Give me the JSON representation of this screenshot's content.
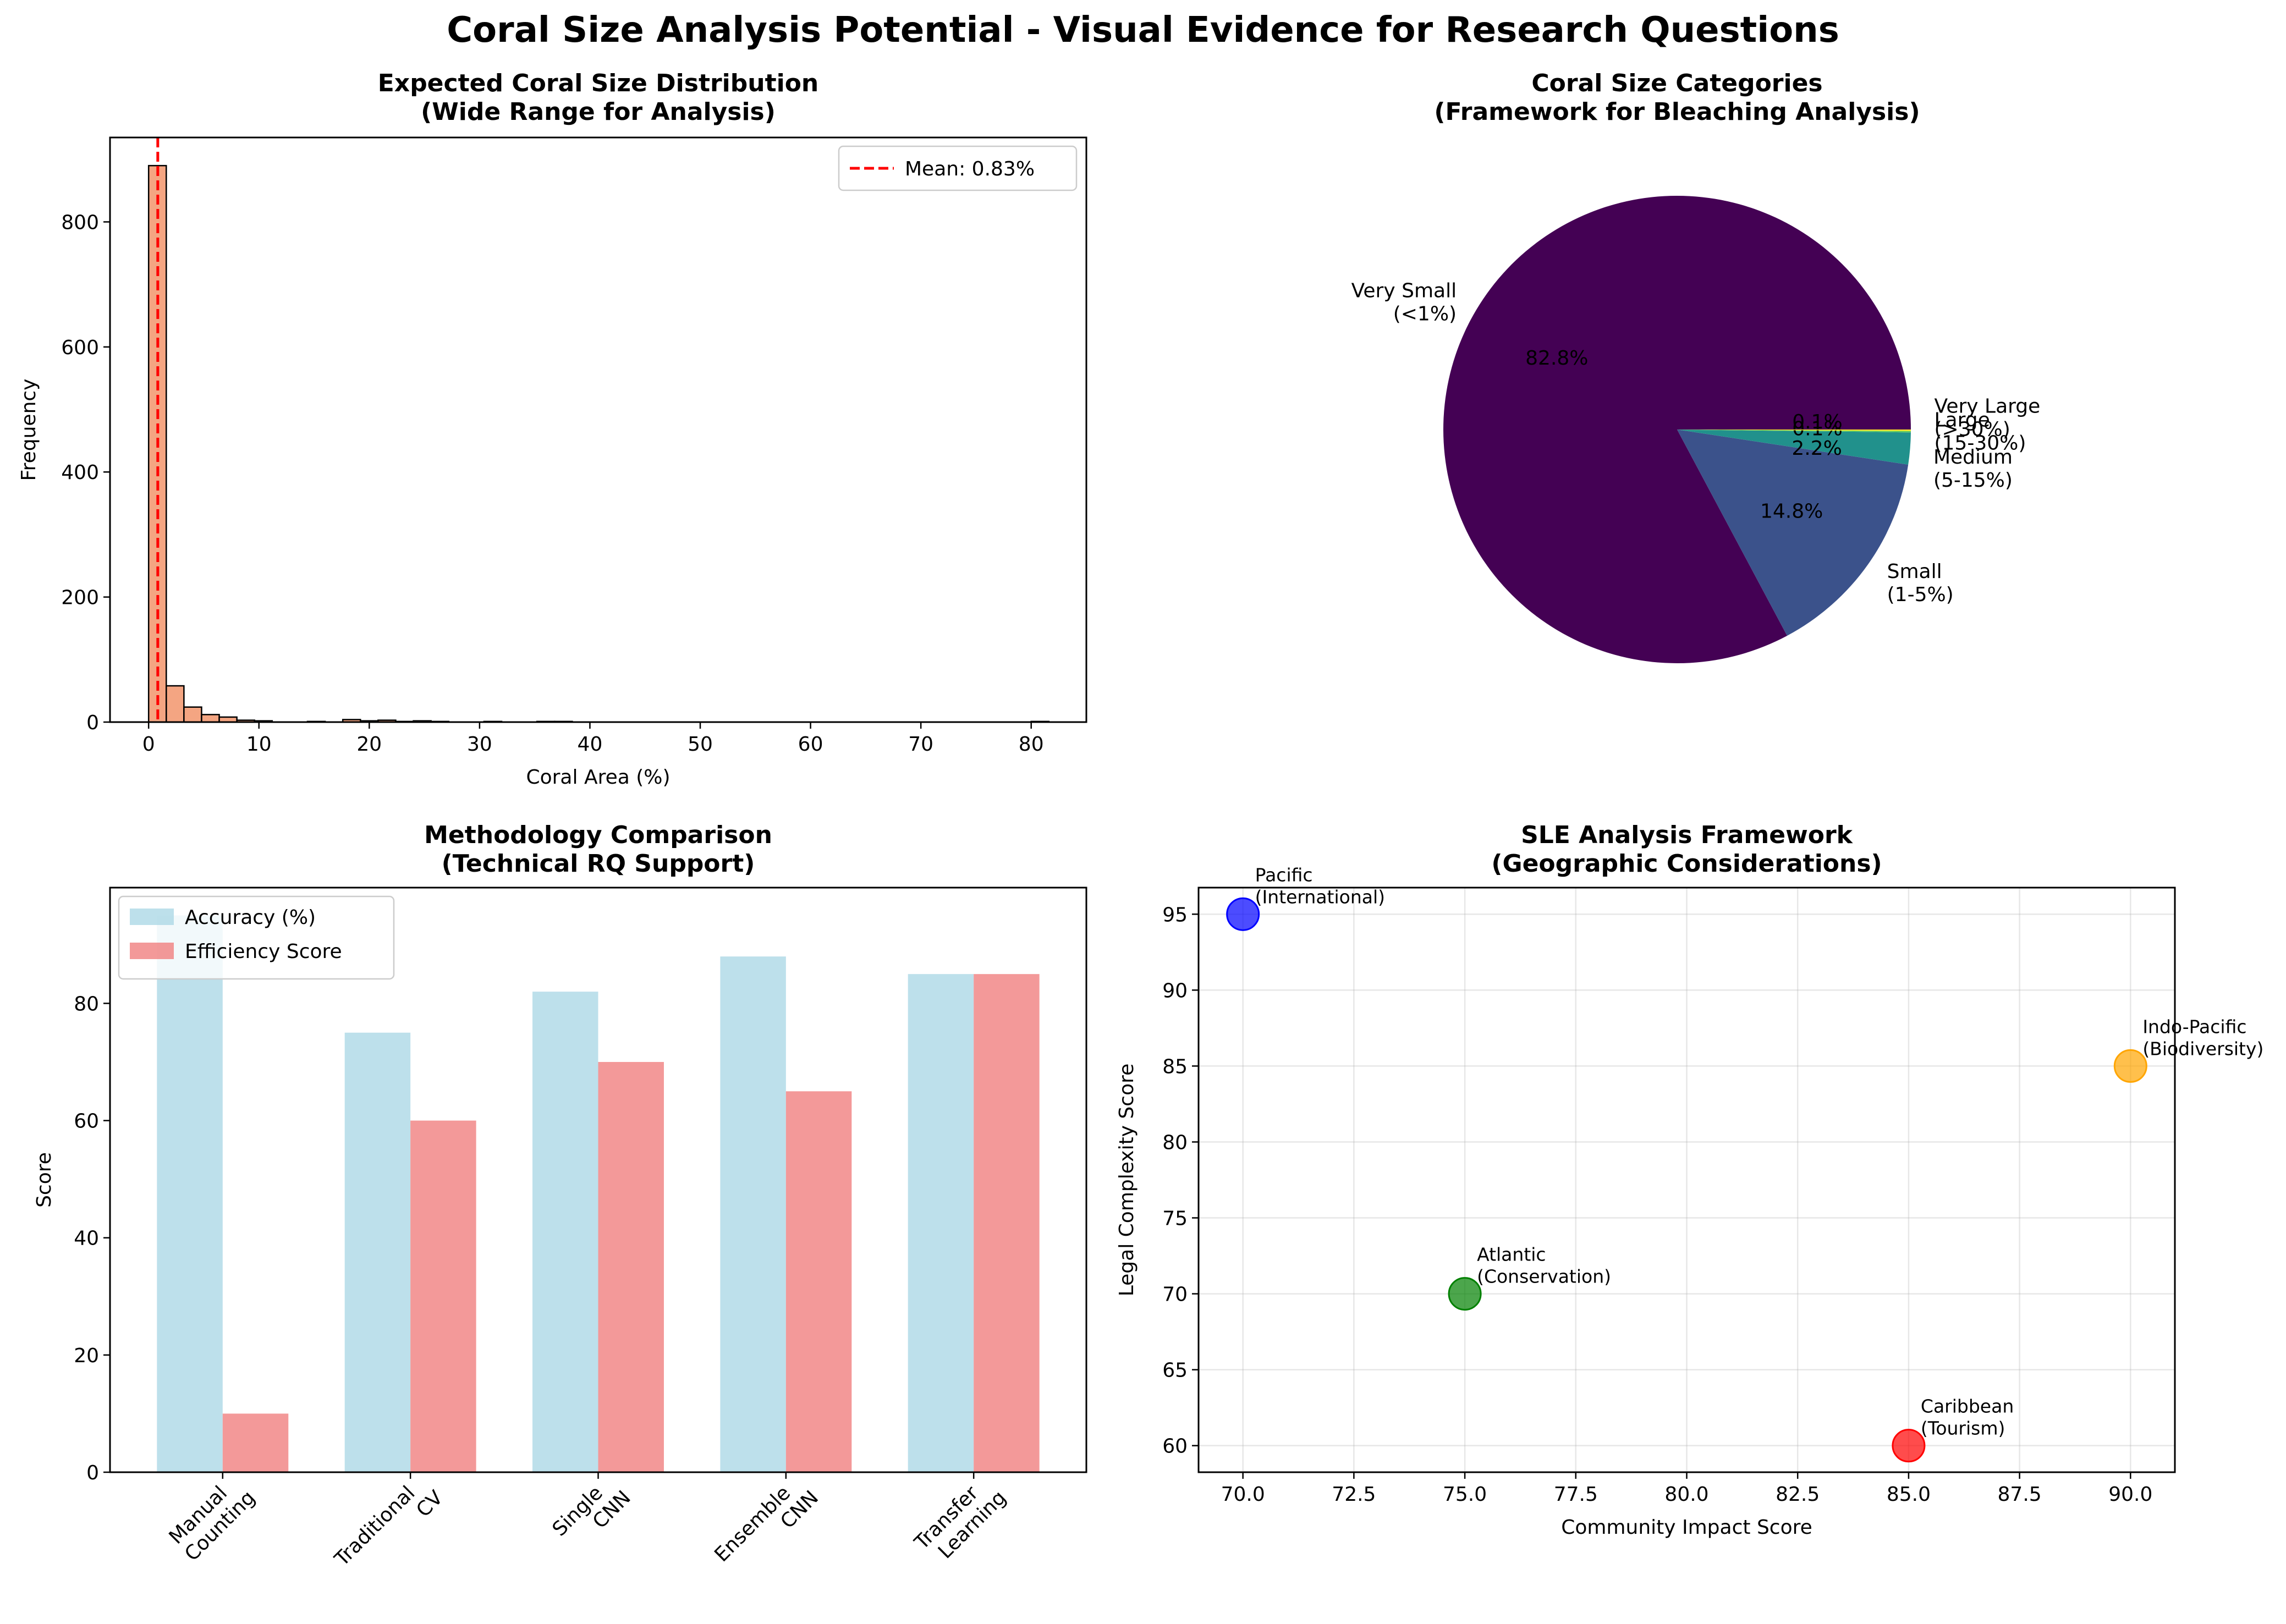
{
  "suptitle": "Coral Size Analysis Potential - Visual Evidence for Research Questions",
  "chart_data": [
    {
      "type": "bar",
      "subtype": "histogram",
      "title": "Expected Coral Size Distribution\n(Wide Range for Analysis)",
      "xlabel": "Coral Area (%)",
      "ylabel": "Frequency",
      "xlim": [
        -3.5,
        85
      ],
      "ylim": [
        0,
        935
      ],
      "xticks": [
        0,
        10,
        20,
        30,
        40,
        50,
        60,
        70,
        80
      ],
      "yticks": [
        0,
        200,
        400,
        600,
        800
      ],
      "bin_edges_start": 0.0,
      "bin_width": 1.6,
      "counts": [
        890,
        58,
        24,
        12,
        8,
        3,
        2,
        0,
        0,
        1,
        0,
        4,
        2,
        3,
        1,
        2,
        1,
        0,
        0,
        1,
        0,
        0,
        1,
        1,
        0,
        0,
        0,
        0,
        0,
        0,
        0,
        0,
        0,
        0,
        0,
        0,
        0,
        0,
        0,
        0,
        0,
        0,
        0,
        0,
        0,
        0,
        0,
        0,
        0,
        0,
        1
      ],
      "bar_color": "#f4a582",
      "mean": 0.83,
      "mean_label": "Mean: 0.83%",
      "mean_color": "#ff0000",
      "legend_loc": "top-right"
    },
    {
      "type": "pie",
      "title": "Coral Size Categories\n(Framework for Bleaching Analysis)",
      "slices": [
        {
          "label": "Very Small\n(<1%)",
          "value": 82.8,
          "pct_label": "82.8%",
          "color": "#440154"
        },
        {
          "label": "Small\n(1-5%)",
          "value": 14.8,
          "pct_label": "14.8%",
          "color": "#3b528b"
        },
        {
          "label": "Medium\n(5-15%)",
          "value": 2.2,
          "pct_label": "2.2%",
          "color": "#21918c"
        },
        {
          "label": "Large\n(15-30%)",
          "value": 0.1,
          "pct_label": "0.1%",
          "color": "#5ec962"
        },
        {
          "label": "Very Large\n(>30%)",
          "value": 0.1,
          "pct_label": "0.1%",
          "color": "#fde725"
        }
      ]
    },
    {
      "type": "bar",
      "title": "Methodology Comparison\n(Technical RQ Support)",
      "ylabel": "Score",
      "categories": [
        "Manual\nCounting",
        "Traditional\nCV",
        "Single\nCNN",
        "Ensemble\nCNN",
        "Transfer\nLearning"
      ],
      "series": [
        {
          "name": "Accuracy (%)",
          "values": [
            95,
            75,
            82,
            88,
            85
          ],
          "color": "#add8e6"
        },
        {
          "name": "Efficiency Score",
          "values": [
            10,
            60,
            70,
            65,
            85
          ],
          "color": "#f08080"
        }
      ],
      "ylim": [
        0,
        99.75
      ],
      "yticks": [
        0,
        20,
        40,
        60,
        80
      ],
      "legend_loc": "top-left"
    },
    {
      "type": "scatter",
      "title": "SLE Analysis Framework\n(Geographic Considerations)",
      "xlabel": "Community Impact Score",
      "ylabel": "Legal Complexity Score",
      "xlim": [
        69,
        91
      ],
      "ylim": [
        58.25,
        96.75
      ],
      "xticks": [
        70.0,
        72.5,
        75.0,
        77.5,
        80.0,
        82.5,
        85.0,
        87.5,
        90.0
      ],
      "yticks": [
        60,
        65,
        70,
        75,
        80,
        85,
        90,
        95
      ],
      "grid": true,
      "points": [
        {
          "x": 85,
          "y": 60,
          "color": "#ff0000",
          "label": "Caribbean\n(Tourism)"
        },
        {
          "x": 70,
          "y": 95,
          "color": "#0000ff",
          "label": "Pacific\n(International)"
        },
        {
          "x": 75,
          "y": 70,
          "color": "#008000",
          "label": "Atlantic\n(Conservation)"
        },
        {
          "x": 90,
          "y": 85,
          "color": "#ffa500",
          "label": "Indo-Pacific\n(Biodiversity)"
        }
      ]
    }
  ]
}
